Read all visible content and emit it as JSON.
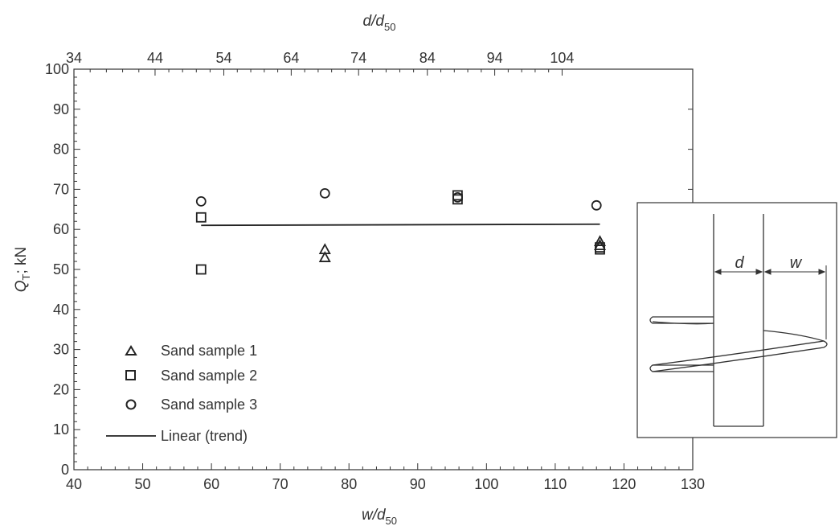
{
  "chart_data": {
    "type": "scatter",
    "xlabel": "w/d",
    "xlabel_sub": "50",
    "x2label": "d/d",
    "x2label_sub": "50",
    "ylabel": "Q",
    "ylabel_sub": "T",
    "ylabel_unit": "; kN",
    "xlim": [
      40,
      130
    ],
    "ylim": [
      0,
      100
    ],
    "x_ticks": [
      "40",
      "50",
      "60",
      "70",
      "80",
      "90",
      "100",
      "110",
      "120",
      "130"
    ],
    "y_ticks": [
      "0",
      "10",
      "20",
      "30",
      "40",
      "50",
      "60",
      "70",
      "80",
      "90",
      "100"
    ],
    "x2_ticks": [
      {
        "label": "34",
        "x": 40
      },
      {
        "label": "44",
        "x": 51.8
      },
      {
        "label": "54",
        "x": 61.8
      },
      {
        "label": "64",
        "x": 71.6
      },
      {
        "label": "74",
        "x": 81.4
      },
      {
        "label": "84",
        "x": 91.4
      },
      {
        "label": "94",
        "x": 101.2
      },
      {
        "label": "104",
        "x": 111.0
      }
    ],
    "series": [
      {
        "name": "Sand sample 1",
        "marker": "triangle",
        "points": [
          [
            76.5,
            55
          ],
          [
            76.5,
            53
          ],
          [
            116.5,
            57
          ],
          [
            116.5,
            56
          ]
        ]
      },
      {
        "name": "Sand sample 2",
        "marker": "square",
        "points": [
          [
            58.5,
            63
          ],
          [
            58.5,
            50
          ],
          [
            95.8,
            68.5
          ],
          [
            95.8,
            67.5
          ],
          [
            116.5,
            55.5
          ],
          [
            116.5,
            55
          ]
        ]
      },
      {
        "name": "Sand sample 3",
        "marker": "circle",
        "points": [
          [
            58.5,
            67
          ],
          [
            76.5,
            69
          ],
          [
            95.8,
            68
          ],
          [
            116,
            66
          ]
        ]
      }
    ],
    "trend": {
      "name": "Linear (trend)",
      "points": [
        [
          58.5,
          61
        ],
        [
          116.5,
          61.3
        ]
      ]
    },
    "legend_position": "bottom-left",
    "grid": false,
    "inset": {
      "labels": {
        "d": "d",
        "w": "w"
      }
    }
  }
}
